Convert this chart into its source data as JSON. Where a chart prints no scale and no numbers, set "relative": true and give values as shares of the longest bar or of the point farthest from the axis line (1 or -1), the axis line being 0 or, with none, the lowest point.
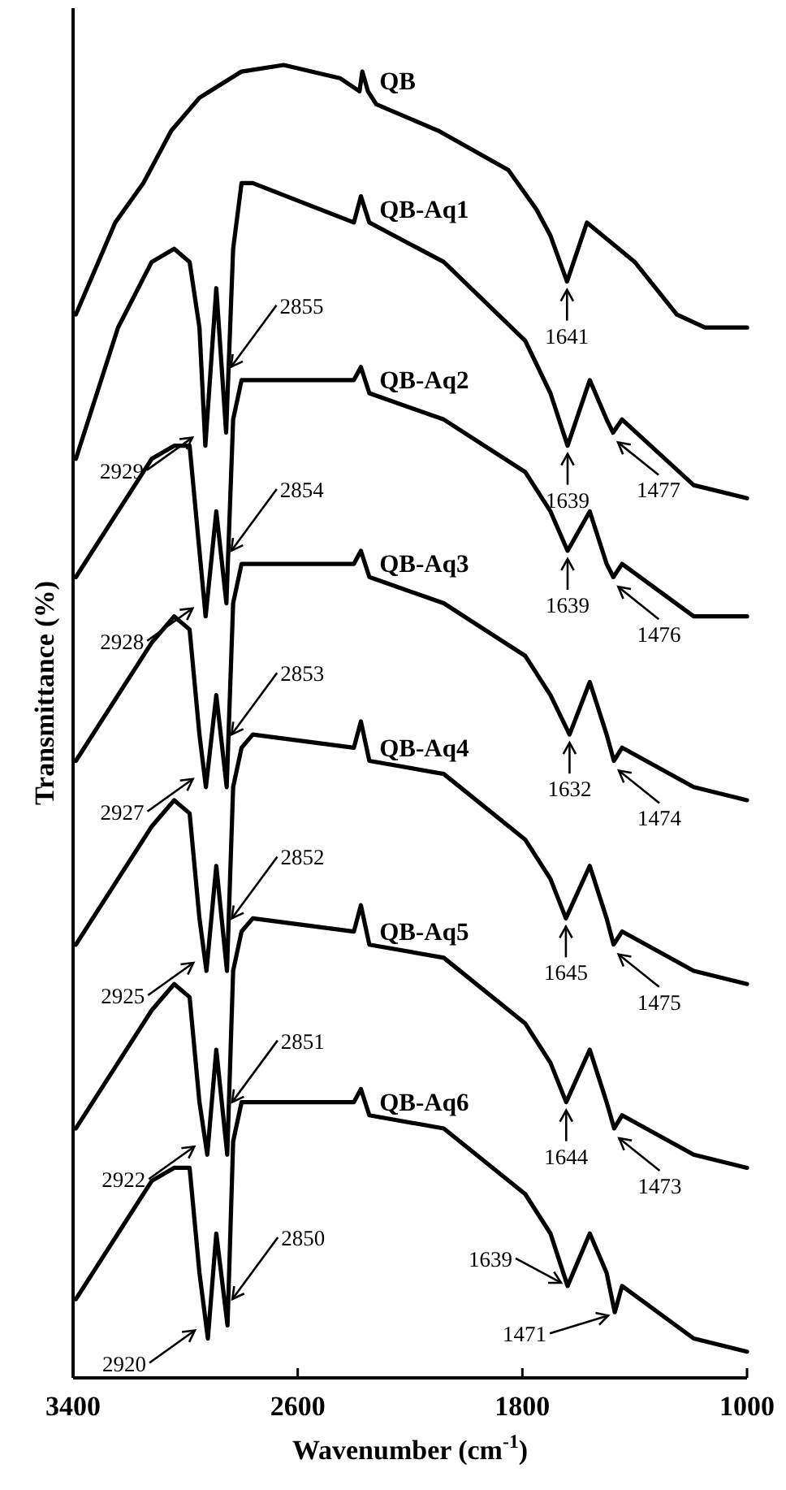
{
  "chart_data": {
    "type": "line",
    "relative": true,
    "xlabel": "Wavenumber (cm$^{-1}$)",
    "ylabel": "Transmittance (%)",
    "xlim": [
      3400,
      1000
    ],
    "xticks": [
      3400,
      2600,
      1800,
      1000
    ],
    "series": [
      {
        "name": "QB",
        "color": "#000000",
        "x": [
          3390,
          3250,
          3150,
          3050,
          2950,
          2800,
          2650,
          2450,
          2380,
          2370,
          2350,
          2320,
          2100,
          1850,
          1750,
          1700,
          1641,
          1570,
          1400,
          1250,
          1150,
          1000
        ],
        "values": [
          0.81,
          0.88,
          0.91,
          0.95,
          0.975,
          0.995,
          1.0,
          0.99,
          0.98,
          0.995,
          0.98,
          0.97,
          0.95,
          0.92,
          0.89,
          0.87,
          0.835,
          0.88,
          0.85,
          0.81,
          0.8,
          0.8
        ]
      },
      {
        "name": "QB-Aq1",
        "color": "#000000",
        "x": [
          3390,
          3240,
          3120,
          3040,
          2985,
          2950,
          2929,
          2890,
          2855,
          2830,
          2800,
          2760,
          2400,
          2375,
          2345,
          2080,
          1790,
          1700,
          1639,
          1560,
          1500,
          1477,
          1445,
          1190,
          1000
        ],
        "values": [
          0.7,
          0.8,
          0.85,
          0.86,
          0.85,
          0.8,
          0.71,
          0.83,
          0.72,
          0.86,
          0.91,
          0.91,
          0.88,
          0.9,
          0.88,
          0.85,
          0.79,
          0.75,
          0.71,
          0.76,
          0.73,
          0.72,
          0.73,
          0.68,
          0.67
        ]
      },
      {
        "name": "QB-Aq2",
        "color": "#000000",
        "x": [
          3390,
          3240,
          3120,
          3040,
          2985,
          2950,
          2928,
          2890,
          2854,
          2830,
          2800,
          2760,
          2400,
          2375,
          2345,
          2080,
          1790,
          1700,
          1639,
          1560,
          1500,
          1476,
          1445,
          1190,
          1000
        ],
        "values": [
          0.61,
          0.66,
          0.7,
          0.71,
          0.71,
          0.63,
          0.58,
          0.66,
          0.59,
          0.73,
          0.76,
          0.76,
          0.76,
          0.77,
          0.75,
          0.73,
          0.69,
          0.66,
          0.63,
          0.66,
          0.62,
          0.61,
          0.62,
          0.58,
          0.58
        ]
      },
      {
        "name": "QB-Aq3",
        "color": "#000000",
        "x": [
          3390,
          3240,
          3120,
          3040,
          2985,
          2950,
          2927,
          2890,
          2853,
          2830,
          2800,
          2760,
          2400,
          2375,
          2345,
          2080,
          1790,
          1700,
          1632,
          1560,
          1500,
          1474,
          1445,
          1190,
          1000
        ],
        "values": [
          0.47,
          0.52,
          0.56,
          0.58,
          0.57,
          0.49,
          0.45,
          0.52,
          0.45,
          0.59,
          0.62,
          0.62,
          0.62,
          0.63,
          0.61,
          0.59,
          0.55,
          0.52,
          0.49,
          0.53,
          0.49,
          0.47,
          0.48,
          0.45,
          0.44
        ]
      },
      {
        "name": "QB-Aq4",
        "color": "#000000",
        "x": [
          3390,
          3240,
          3120,
          3040,
          2985,
          2950,
          2925,
          2890,
          2852,
          2830,
          2800,
          2760,
          2400,
          2375,
          2345,
          2080,
          1790,
          1700,
          1645,
          1560,
          1500,
          1475,
          1445,
          1190,
          1000
        ],
        "values": [
          0.33,
          0.38,
          0.42,
          0.44,
          0.43,
          0.35,
          0.31,
          0.39,
          0.31,
          0.45,
          0.48,
          0.49,
          0.48,
          0.5,
          0.47,
          0.46,
          0.41,
          0.38,
          0.35,
          0.39,
          0.35,
          0.33,
          0.34,
          0.31,
          0.3
        ]
      },
      {
        "name": "QB-Aq5",
        "color": "#000000",
        "x": [
          3390,
          3240,
          3120,
          3040,
          2985,
          2950,
          2922,
          2890,
          2851,
          2830,
          2800,
          2760,
          2400,
          2375,
          2345,
          2080,
          1790,
          1700,
          1644,
          1560,
          1500,
          1473,
          1445,
          1190,
          1000
        ],
        "values": [
          0.19,
          0.24,
          0.28,
          0.3,
          0.29,
          0.21,
          0.17,
          0.25,
          0.17,
          0.31,
          0.34,
          0.35,
          0.34,
          0.36,
          0.33,
          0.32,
          0.27,
          0.24,
          0.21,
          0.25,
          0.21,
          0.19,
          0.2,
          0.17,
          0.16
        ]
      },
      {
        "name": "QB-Aq6",
        "color": "#000000",
        "x": [
          3390,
          3240,
          3120,
          3040,
          2985,
          2950,
          2920,
          2890,
          2850,
          2830,
          2800,
          2760,
          2400,
          2375,
          2345,
          2080,
          1790,
          1700,
          1639,
          1560,
          1500,
          1471,
          1445,
          1190,
          1000
        ],
        "values": [
          0.06,
          0.11,
          0.15,
          0.16,
          0.16,
          0.08,
          0.03,
          0.11,
          0.04,
          0.18,
          0.21,
          0.21,
          0.21,
          0.22,
          0.2,
          0.19,
          0.14,
          0.11,
          0.07,
          0.11,
          0.08,
          0.05,
          0.07,
          0.03,
          0.02
        ]
      }
    ],
    "annotations": [
      {
        "text": "1641",
        "x": 1641,
        "y": 0.835
      },
      {
        "text": "2929",
        "x": 2929,
        "y": 0.71
      },
      {
        "text": "2855",
        "x": 2855,
        "y": 0.77
      },
      {
        "text": "1639",
        "x": 1639,
        "y": 0.71
      },
      {
        "text": "1477",
        "x": 1477,
        "y": 0.72
      },
      {
        "text": "2928",
        "x": 2928,
        "y": 0.58
      },
      {
        "text": "2854",
        "x": 2854,
        "y": 0.63
      },
      {
        "text": "1639",
        "x": 1639,
        "y": 0.63
      },
      {
        "text": "1476",
        "x": 1476,
        "y": 0.61
      },
      {
        "text": "2927",
        "x": 2927,
        "y": 0.45
      },
      {
        "text": "2853",
        "x": 2853,
        "y": 0.49
      },
      {
        "text": "1632",
        "x": 1632,
        "y": 0.49
      },
      {
        "text": "1474",
        "x": 1474,
        "y": 0.47
      },
      {
        "text": "2925",
        "x": 2925,
        "y": 0.31
      },
      {
        "text": "2852",
        "x": 2852,
        "y": 0.35
      },
      {
        "text": "1645",
        "x": 1645,
        "y": 0.35
      },
      {
        "text": "1475",
        "x": 1475,
        "y": 0.33
      },
      {
        "text": "2922",
        "x": 2922,
        "y": 0.17
      },
      {
        "text": "2851",
        "x": 2851,
        "y": 0.21
      },
      {
        "text": "1644",
        "x": 1644,
        "y": 0.21
      },
      {
        "text": "1473",
        "x": 1473,
        "y": 0.19
      },
      {
        "text": "2920",
        "x": 2920,
        "y": 0.03
      },
      {
        "text": "2850",
        "x": 2850,
        "y": 0.06
      },
      {
        "text": "1639",
        "x": 1639,
        "y": 0.07
      },
      {
        "text": "1471",
        "x": 1471,
        "y": 0.05
      }
    ]
  }
}
